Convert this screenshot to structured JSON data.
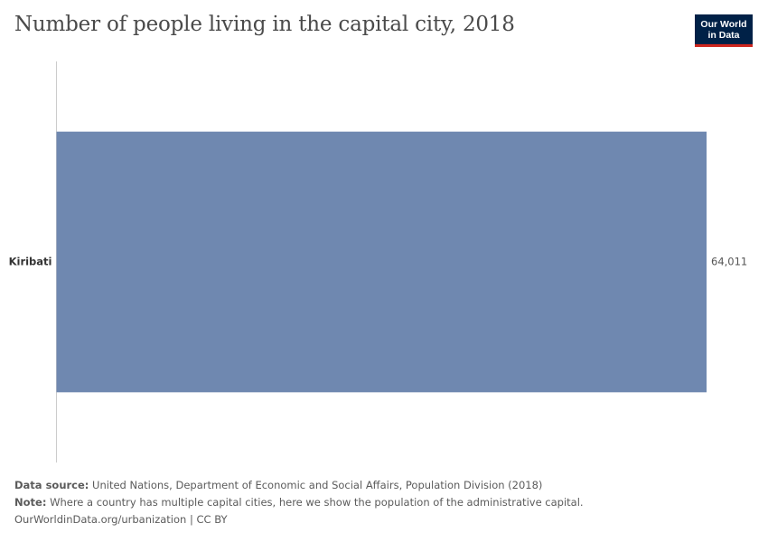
{
  "title": "Number of people living in the capital city, 2018",
  "logo": {
    "line1": "Our World",
    "line2": "in Data"
  },
  "chart_data": {
    "type": "bar",
    "orientation": "horizontal",
    "categories": [
      "Kiribati"
    ],
    "values": [
      64011
    ],
    "value_labels": [
      "64,011"
    ],
    "title": "Number of people living in the capital city, 2018",
    "xlabel": "",
    "ylabel": "",
    "xlim": [
      0,
      64011
    ],
    "grid": false,
    "bar_color": "#6f88b0"
  },
  "footer": {
    "source_label": "Data source:",
    "source_text": "United Nations, Department of Economic and Social Affairs, Population Division (2018)",
    "note_label": "Note:",
    "note_text": "Where a country has multiple capital cities, here we show the population of the administrative capital.",
    "url_text": "OurWorldinData.org/urbanization | CC BY"
  }
}
